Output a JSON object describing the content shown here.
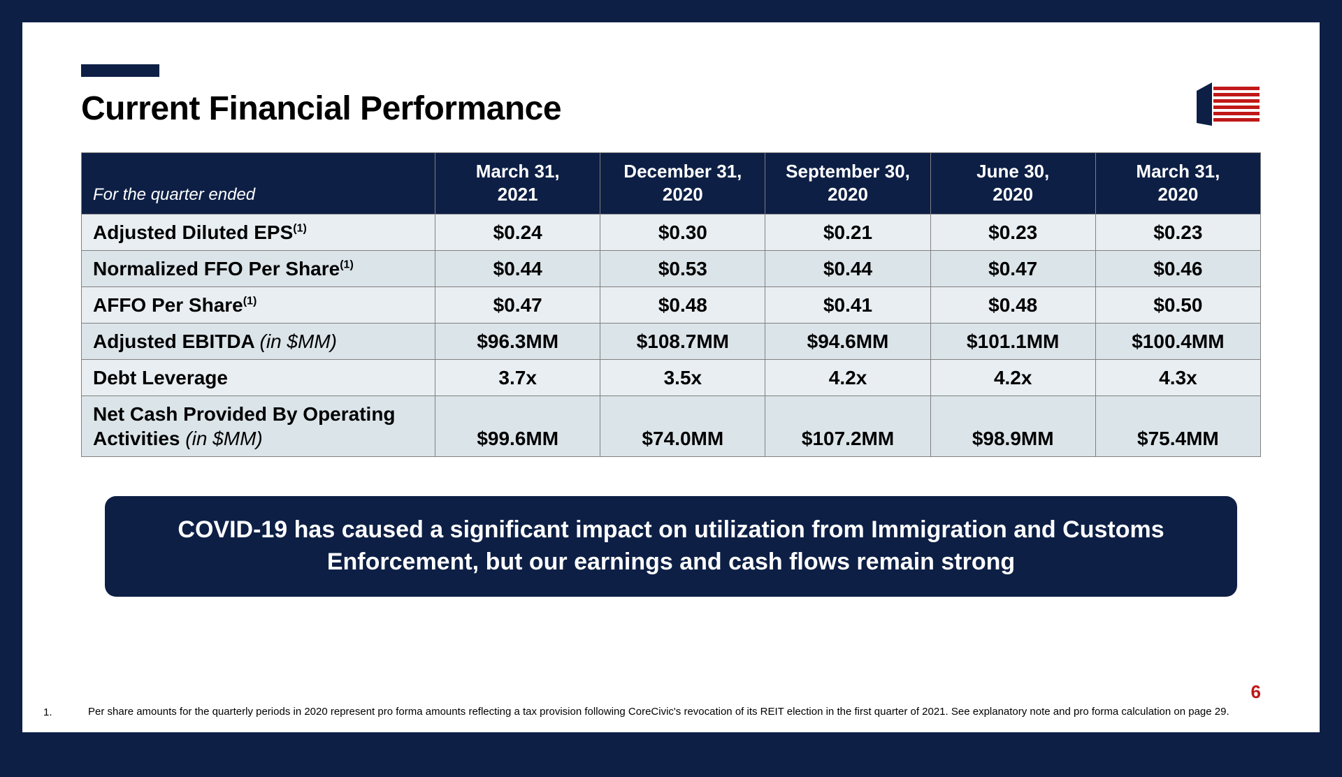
{
  "colors": {
    "page_border": "#0d1f45",
    "slide_bg": "#ffffff",
    "accent_bar": "#0d1f45",
    "title_text": "#000000",
    "table_header_bg": "#0d1f45",
    "table_header_text": "#ffffff",
    "table_border": "#808080",
    "row_odd_bg": "#e9eef2",
    "row_even_bg": "#dbe4e9",
    "callout_bg": "#0d1f45",
    "callout_text": "#ffffff",
    "page_num": "#c01818",
    "logo_blue": "#0d1f45",
    "logo_red": "#c01818"
  },
  "title": "Current Financial Performance",
  "table": {
    "corner_label": "For the quarter ended",
    "columns": [
      {
        "line1": "March 31,",
        "line2": "2021"
      },
      {
        "line1": "December 31,",
        "line2": "2020"
      },
      {
        "line1": "September 30,",
        "line2": "2020"
      },
      {
        "line1": "June 30,",
        "line2": "2020"
      },
      {
        "line1": "March 31,",
        "line2": "2020"
      }
    ],
    "rows": [
      {
        "label": "Adjusted Diluted EPS",
        "sup": "(1)",
        "suffix": "",
        "values": [
          "$0.24",
          "$0.30",
          "$0.21",
          "$0.23",
          "$0.23"
        ]
      },
      {
        "label": "Normalized FFO Per Share",
        "sup": "(1)",
        "suffix": "",
        "values": [
          "$0.44",
          "$0.53",
          "$0.44",
          "$0.47",
          "$0.46"
        ]
      },
      {
        "label": "AFFO Per Share",
        "sup": "(1)",
        "suffix": "",
        "values": [
          "$0.47",
          "$0.48",
          "$0.41",
          "$0.48",
          "$0.50"
        ]
      },
      {
        "label": "Adjusted EBITDA ",
        "sup": "",
        "suffix": "(in $MM)",
        "values": [
          "$96.3MM",
          "$108.7MM",
          "$94.6MM",
          "$101.1MM",
          "$100.4MM"
        ]
      },
      {
        "label": "Debt Leverage",
        "sup": "",
        "suffix": "",
        "values": [
          "3.7x",
          "3.5x",
          "4.2x",
          "4.2x",
          "4.3x"
        ]
      },
      {
        "label": "Net Cash Provided By Operating Activities ",
        "sup": "",
        "suffix": "(in $MM)",
        "values": [
          "$99.6MM",
          "$74.0MM",
          "$107.2MM",
          "$98.9MM",
          "$75.4MM"
        ]
      }
    ]
  },
  "callout": "COVID-19 has caused a significant impact on utilization from Immigration and Customs Enforcement, but our earnings and cash flows remain strong",
  "footnote": {
    "num": "1.",
    "text": "Per share amounts for the quarterly periods in 2020 represent pro forma amounts reflecting a tax provision following CoreCivic's revocation of its REIT election in the first quarter of 2021.  See explanatory note and pro forma calculation on page 29."
  },
  "page_number": "6"
}
